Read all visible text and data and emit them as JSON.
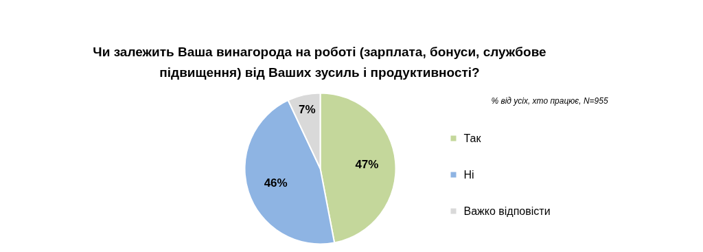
{
  "chart_data": {
    "type": "pie",
    "title": "Чи залежить Ваша винагорода на роботі (зарплата, бонуси, службове підвищення) від Ваших зусиль і продуктивності?",
    "annotations": [
      "% від усіх, хто працює, N=955"
    ],
    "categories": [
      "Так",
      "Ні",
      "Важко відповісти"
    ],
    "values": [
      47,
      46,
      7
    ],
    "colors": [
      "#c4d79b",
      "#8eb4e3",
      "#d9d9d9"
    ],
    "value_labels": [
      "47%",
      "46%",
      "7%"
    ],
    "legend": "right"
  }
}
